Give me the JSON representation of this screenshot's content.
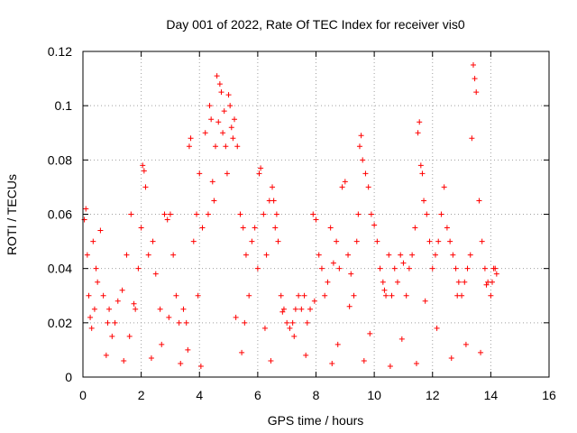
{
  "chart_data": {
    "type": "scatter",
    "title": "Day 001 of 2022, Rate Of TEC Index for receiver vis0",
    "xlabel": "GPS time / hours",
    "ylabel": "ROTI / TECUs",
    "xlim": [
      0,
      16
    ],
    "ylim": [
      0,
      0.12
    ],
    "x_ticks": [
      0,
      2,
      4,
      6,
      8,
      10,
      12,
      14,
      16
    ],
    "x_tick_labels": [
      "0",
      "2",
      "4",
      "6",
      "8",
      "10",
      "12",
      "14",
      "16"
    ],
    "y_ticks": [
      0,
      0.02,
      0.04,
      0.06,
      0.08,
      0.1,
      0.12
    ],
    "y_tick_labels": [
      "0",
      "0.02",
      "0.04",
      "0.06",
      "0.08",
      "0.1",
      "0.12"
    ],
    "grid": true,
    "marker": "+",
    "marker_color": "#ff0000",
    "series": [
      {
        "name": "ROTI",
        "x": [
          0.05,
          0.1,
          0.15,
          0.2,
          0.25,
          0.3,
          0.35,
          0.45,
          0.5,
          0.6,
          0.7,
          0.85,
          1.0,
          1.2,
          1.35,
          1.5,
          1.65,
          1.8,
          1.9,
          2.0,
          2.05,
          2.1,
          2.15,
          2.25,
          2.4,
          2.5,
          2.65,
          2.8,
          2.9,
          3.0,
          3.1,
          3.2,
          3.3,
          3.45,
          3.55,
          3.65,
          3.7,
          3.8,
          3.9,
          4.0,
          4.1,
          4.2,
          4.3,
          4.35,
          4.4,
          4.45,
          4.5,
          4.55,
          4.6,
          4.65,
          4.7,
          4.75,
          4.8,
          4.85,
          4.9,
          4.95,
          5.0,
          5.05,
          5.1,
          5.15,
          5.2,
          5.3,
          5.4,
          5.5,
          5.6,
          5.7,
          5.8,
          5.9,
          6.0,
          6.05,
          6.1,
          6.2,
          6.3,
          6.4,
          6.5,
          6.55,
          6.6,
          6.65,
          6.7,
          6.8,
          6.9,
          7.0,
          7.1,
          7.2,
          7.3,
          7.4,
          7.5,
          7.6,
          7.7,
          7.8,
          7.9,
          8.0,
          8.1,
          8.2,
          8.3,
          8.4,
          8.5,
          8.6,
          8.7,
          8.8,
          8.9,
          9.0,
          9.1,
          9.2,
          9.3,
          9.4,
          9.45,
          9.5,
          9.55,
          9.6,
          9.7,
          9.8,
          9.9,
          10.0,
          10.1,
          10.2,
          10.3,
          10.4,
          10.5,
          10.6,
          10.7,
          10.8,
          10.9,
          11.0,
          11.1,
          11.2,
          11.3,
          11.4,
          11.5,
          11.55,
          11.6,
          11.65,
          11.7,
          11.8,
          11.9,
          12.0,
          12.1,
          12.2,
          12.3,
          12.4,
          12.5,
          12.6,
          12.7,
          12.8,
          12.9,
          13.0,
          13.1,
          13.2,
          13.3,
          13.35,
          13.4,
          13.45,
          13.5,
          13.6,
          13.7,
          13.8,
          13.9,
          14.0,
          14.05,
          14.1,
          14.15,
          14.2,
          0.4,
          1.1,
          1.6,
          2.7,
          3.6,
          5.25,
          6.25,
          7.25,
          8.75,
          9.85,
          10.95,
          12.15,
          13.15,
          0.8,
          1.4,
          2.35,
          3.35,
          4.05,
          5.45,
          6.45,
          7.65,
          8.55,
          9.65,
          10.55,
          11.45,
          12.65,
          13.65,
          0.9,
          1.75,
          2.95,
          3.95,
          5.55,
          6.85,
          7.95,
          9.15,
          10.35,
          11.75,
          12.85,
          13.85
        ],
        "y": [
          0.058,
          0.062,
          0.045,
          0.03,
          0.022,
          0.018,
          0.05,
          0.04,
          0.035,
          0.054,
          0.03,
          0.02,
          0.015,
          0.028,
          0.032,
          0.045,
          0.06,
          0.025,
          0.04,
          0.055,
          0.078,
          0.076,
          0.07,
          0.045,
          0.05,
          0.038,
          0.025,
          0.06,
          0.058,
          0.06,
          0.045,
          0.03,
          0.02,
          0.025,
          0.02,
          0.085,
          0.088,
          0.05,
          0.06,
          0.075,
          0.055,
          0.09,
          0.06,
          0.1,
          0.095,
          0.072,
          0.065,
          0.085,
          0.111,
          0.094,
          0.108,
          0.105,
          0.09,
          0.098,
          0.085,
          0.075,
          0.104,
          0.1,
          0.092,
          0.088,
          0.095,
          0.085,
          0.06,
          0.055,
          0.045,
          0.03,
          0.05,
          0.055,
          0.04,
          0.075,
          0.077,
          0.06,
          0.045,
          0.065,
          0.07,
          0.065,
          0.055,
          0.06,
          0.05,
          0.03,
          0.025,
          0.02,
          0.018,
          0.02,
          0.025,
          0.03,
          0.025,
          0.03,
          0.02,
          0.025,
          0.06,
          0.058,
          0.045,
          0.04,
          0.03,
          0.035,
          0.055,
          0.042,
          0.05,
          0.04,
          0.07,
          0.072,
          0.045,
          0.038,
          0.03,
          0.05,
          0.06,
          0.085,
          0.089,
          0.08,
          0.075,
          0.07,
          0.06,
          0.056,
          0.05,
          0.04,
          0.035,
          0.03,
          0.045,
          0.03,
          0.04,
          0.035,
          0.045,
          0.042,
          0.03,
          0.04,
          0.045,
          0.055,
          0.09,
          0.094,
          0.078,
          0.075,
          0.065,
          0.06,
          0.05,
          0.04,
          0.045,
          0.05,
          0.06,
          0.07,
          0.055,
          0.05,
          0.045,
          0.04,
          0.035,
          0.03,
          0.035,
          0.04,
          0.045,
          0.088,
          0.115,
          0.11,
          0.105,
          0.065,
          0.05,
          0.04,
          0.035,
          0.03,
          0.035,
          0.04,
          0.04,
          0.038,
          0.025,
          0.02,
          0.015,
          0.012,
          0.01,
          0.022,
          0.018,
          0.015,
          0.012,
          0.016,
          0.014,
          0.018,
          0.012,
          0.008,
          0.006,
          0.007,
          0.005,
          0.004,
          0.009,
          0.006,
          0.008,
          0.005,
          0.006,
          0.004,
          0.005,
          0.007,
          0.009,
          0.025,
          0.027,
          0.022,
          0.03,
          0.02,
          0.024,
          0.028,
          0.026,
          0.032,
          0.028,
          0.03,
          0.034
        ]
      }
    ]
  }
}
